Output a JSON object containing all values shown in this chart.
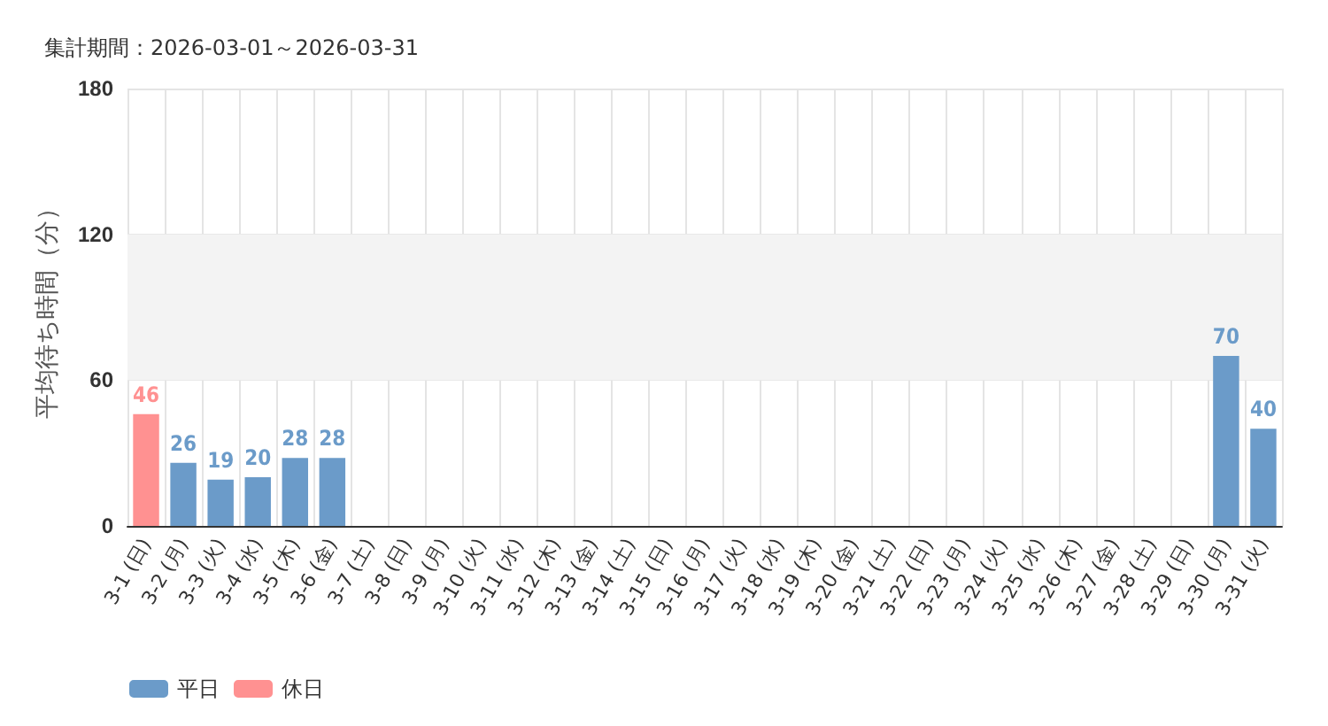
{
  "chart_data": {
    "type": "bar",
    "title": "集計期間：2026-03-01～2026-03-31",
    "ylabel": "平均待ち時間（分）",
    "categories": [
      "3-1 (日)",
      "3-2 (月)",
      "3-3 (火)",
      "3-4 (水)",
      "3-5 (木)",
      "3-6 (金)",
      "3-7 (土)",
      "3-8 (日)",
      "3-9 (月)",
      "3-10 (火)",
      "3-11 (水)",
      "3-12 (木)",
      "3-13 (金)",
      "3-14 (土)",
      "3-15 (日)",
      "3-16 (月)",
      "3-17 (火)",
      "3-18 (水)",
      "3-19 (木)",
      "3-20 (金)",
      "3-21 (土)",
      "3-22 (日)",
      "3-23 (月)",
      "3-24 (火)",
      "3-25 (水)",
      "3-26 (木)",
      "3-27 (金)",
      "3-28 (土)",
      "3-29 (日)",
      "3-30 (月)",
      "3-31 (火)"
    ],
    "series": [
      {
        "name": "平日",
        "color": "#6b9bc9",
        "values": [
          null,
          26,
          19,
          20,
          28,
          28,
          null,
          null,
          null,
          null,
          null,
          null,
          null,
          null,
          null,
          null,
          null,
          null,
          null,
          null,
          null,
          null,
          null,
          null,
          null,
          null,
          null,
          null,
          null,
          70,
          40
        ]
      },
      {
        "name": "休日",
        "color": "#ff9191",
        "values": [
          46,
          null,
          null,
          null,
          null,
          null,
          null,
          null,
          null,
          null,
          null,
          null,
          null,
          null,
          null,
          null,
          null,
          null,
          null,
          null,
          null,
          null,
          null,
          null,
          null,
          null,
          null,
          null,
          null,
          null,
          null
        ]
      }
    ],
    "ylim": [
      0,
      180
    ],
    "yticks": [
      0,
      60,
      120,
      180
    ],
    "grid": true,
    "legend": "bottom left",
    "data_labels": true,
    "bands": [
      {
        "axis": "y",
        "from": 60,
        "to": 120,
        "color": "#f3f3f3"
      }
    ]
  }
}
